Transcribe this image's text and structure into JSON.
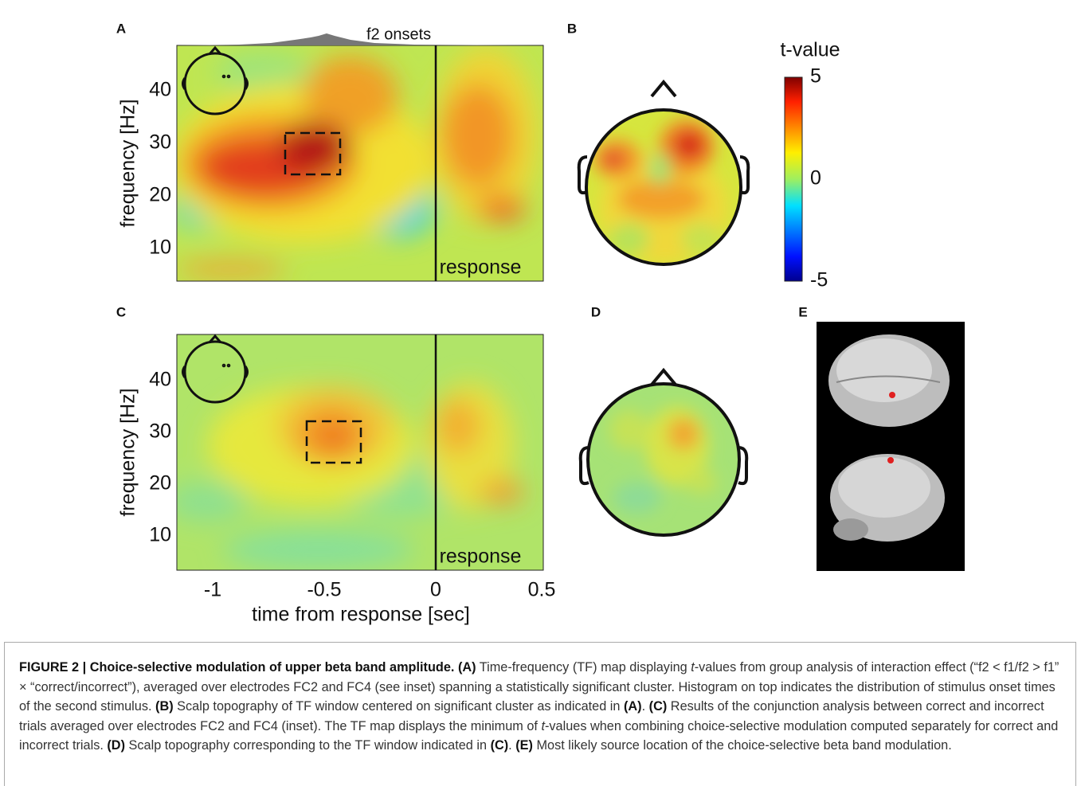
{
  "panel_labels": [
    "A",
    "B",
    "C",
    "D",
    "E"
  ],
  "tf_maps": {
    "histogram_label": "f2 onsets",
    "response_label": "response",
    "y_label": "frequency [Hz]",
    "y_ticks": [
      10,
      20,
      30,
      40
    ],
    "x_label": "time from response [sec]",
    "x_ticks": [
      -1,
      -0.5,
      0,
      0.5
    ]
  },
  "colorbar": {
    "label": "t-value",
    "ticks": [
      5,
      0,
      -5
    ]
  },
  "caption": [
    {
      "text": "FIGURE 2 | Choice-selective modulation of upper beta band amplitude. (A)",
      "bold": true
    },
    {
      "text": " Time-frequency (TF) map displaying "
    },
    {
      "text": "t",
      "italic": true
    },
    {
      "text": "-values from group analysis of interaction effect (“f2 < f1/f2 > f1” × “correct/incorrect”), averaged over electrodes FC2 and FC4 (see inset) spanning a statistically significant cluster. Histogram on top indicates the distribution of stimulus onset times of the second stimulus. "
    },
    {
      "text": "(B)",
      "bold": true
    },
    {
      "text": " Scalp topography of TF window centered on significant cluster as indicated in "
    },
    {
      "text": "(A)",
      "bold": true
    },
    {
      "text": ". "
    },
    {
      "text": "(C)",
      "bold": true
    },
    {
      "text": " Results of the conjunction analysis between correct and incorrect trials averaged over electrodes FC2 and FC4 (inset). The TF map displays the minimum of "
    },
    {
      "text": "t",
      "italic": true
    },
    {
      "text": "-values when combining choice-selective modulation computed separately for correct and incorrect trials. "
    },
    {
      "text": "(D)",
      "bold": true
    },
    {
      "text": " Scalp topography corresponding to the TF window indicated in "
    },
    {
      "text": "(C)",
      "bold": true
    },
    {
      "text": ". "
    },
    {
      "text": "(E)",
      "bold": true
    },
    {
      "text": " Most likely source location of the choice-selective beta band modulation."
    }
  ]
}
